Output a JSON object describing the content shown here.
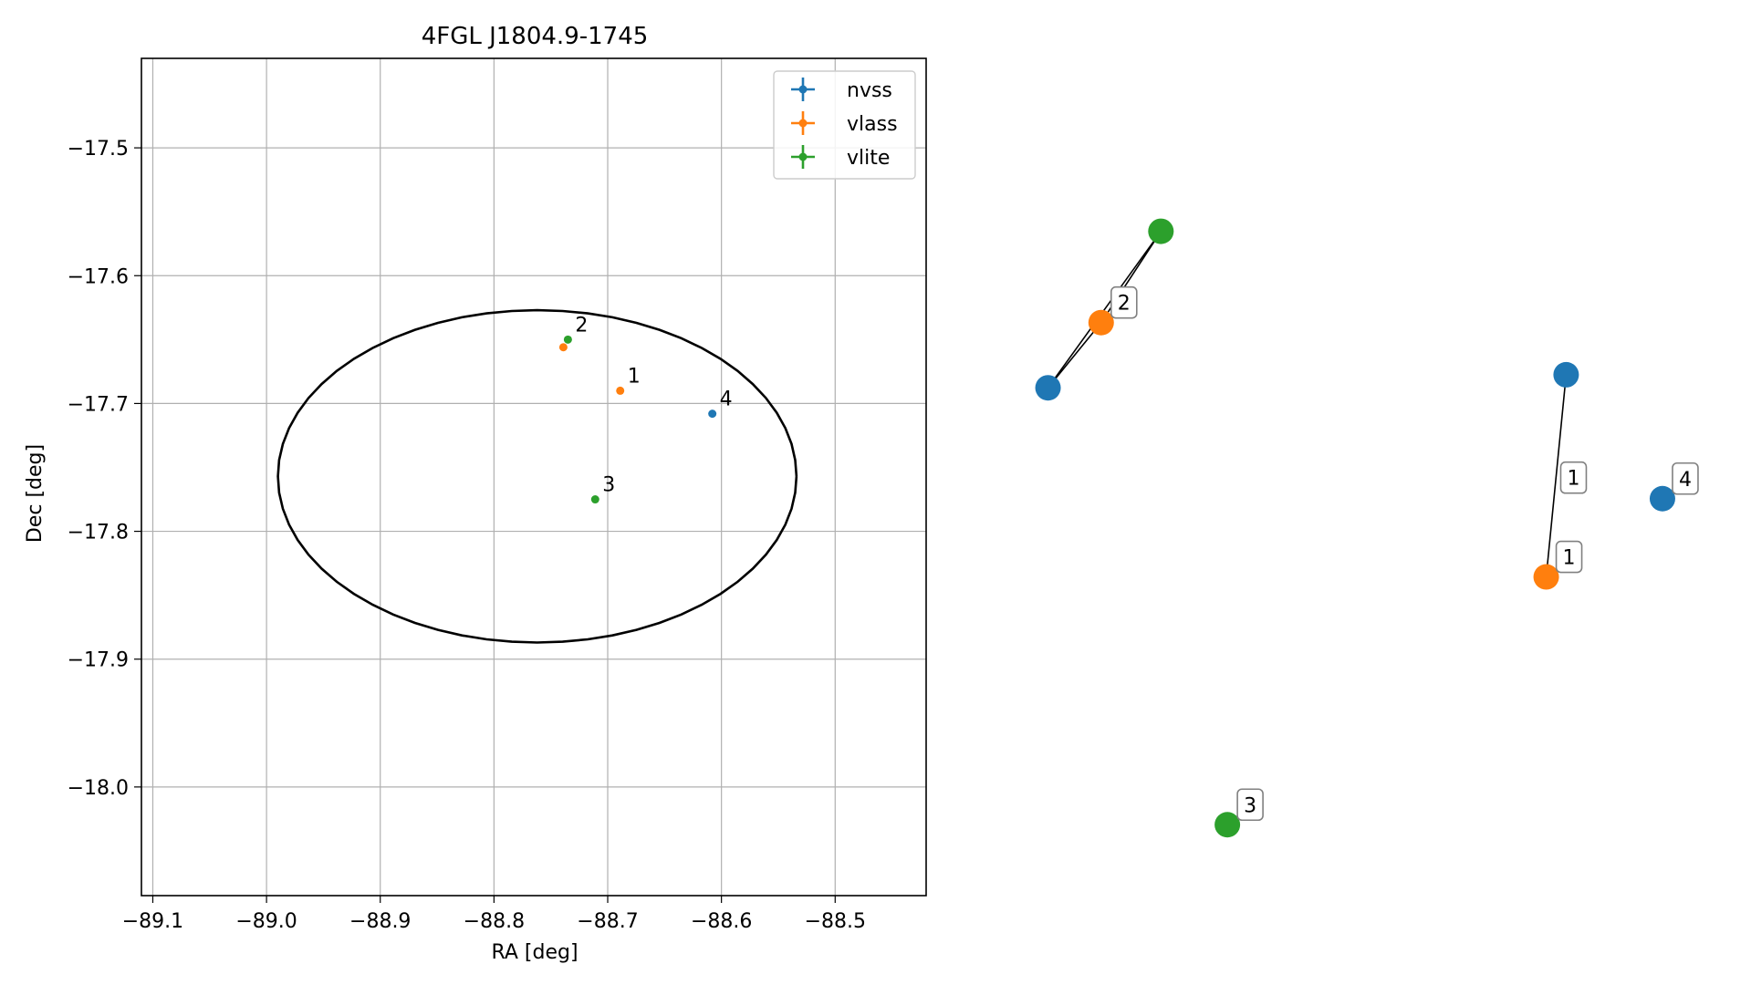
{
  "chart_data": [
    {
      "type": "scatter",
      "title": "4FGL J1804.9-1745",
      "xlabel": "RA [deg]",
      "ylabel": "Dec [deg]",
      "xlim": [
        -89.11,
        -88.42
      ],
      "ylim": [
        -18.085,
        -17.43
      ],
      "xticks": [
        -89.1,
        -89.0,
        -88.9,
        -88.8,
        -88.7,
        -88.6,
        -88.5
      ],
      "xtick_labels": [
        "−89.1",
        "−89.0",
        "−88.9",
        "−88.8",
        "−88.7",
        "−88.6",
        "−88.5"
      ],
      "yticks": [
        -17.5,
        -17.6,
        -17.7,
        -17.8,
        -17.9,
        -18.0
      ],
      "ytick_labels": [
        "−17.5",
        "−17.6",
        "−17.7",
        "−17.8",
        "−17.9",
        "−18.0"
      ],
      "grid": true,
      "legend_position": "top-right",
      "ellipse": {
        "center": [
          -88.762,
          -17.757
        ],
        "semi_axis_ra": 0.228,
        "semi_axis_dec": 0.13,
        "color": "#000000"
      },
      "series": [
        {
          "name": "nvss",
          "color": "#1f77b4",
          "points": [
            {
              "x": -88.608,
              "y": -17.708,
              "label": "4"
            }
          ]
        },
        {
          "name": "vlass",
          "color": "#ff7f0e",
          "points": [
            {
              "x": -88.689,
              "y": -17.69,
              "label": "1"
            },
            {
              "x": -88.739,
              "y": -17.656,
              "label": ""
            }
          ]
        },
        {
          "name": "vlite",
          "color": "#2ca02c",
          "points": [
            {
              "x": -88.735,
              "y": -17.65,
              "label": "2"
            },
            {
              "x": -88.711,
              "y": -17.775,
              "label": "3"
            }
          ]
        }
      ]
    },
    {
      "type": "network",
      "nodes": [
        {
          "id": "n-blue-a",
          "series": "nvss",
          "color": "#1f77b4",
          "x": 0.02,
          "y": 0.72
        },
        {
          "id": "n-orange-a",
          "series": "vlass",
          "color": "#ff7f0e",
          "x": 0.1,
          "y": 0.82,
          "label": "2"
        },
        {
          "id": "n-green-a",
          "series": "vlite",
          "color": "#2ca02c",
          "x": 0.19,
          "y": 0.96
        },
        {
          "id": "n-blue-b",
          "series": "nvss",
          "color": "#1f77b4",
          "x": 0.8,
          "y": 0.74
        },
        {
          "id": "n-orange-b",
          "series": "vlass",
          "color": "#ff7f0e",
          "x": 0.77,
          "y": 0.43,
          "label": "1"
        },
        {
          "id": "n-blue-c",
          "series": "nvss",
          "color": "#1f77b4",
          "x": 0.945,
          "y": 0.55,
          "label": "4"
        },
        {
          "id": "n-green-b",
          "series": "vlite",
          "color": "#2ca02c",
          "x": 0.29,
          "y": 0.05,
          "label": "3"
        }
      ],
      "edges": [
        [
          "n-blue-a",
          "n-orange-a"
        ],
        [
          "n-orange-a",
          "n-green-a"
        ],
        [
          "n-blue-a",
          "n-green-a"
        ],
        [
          "n-blue-b",
          "n-orange-b"
        ]
      ],
      "edge_labels": [
        {
          "edge": [
            "n-blue-b",
            "n-orange-b"
          ],
          "label": "1"
        }
      ]
    }
  ]
}
